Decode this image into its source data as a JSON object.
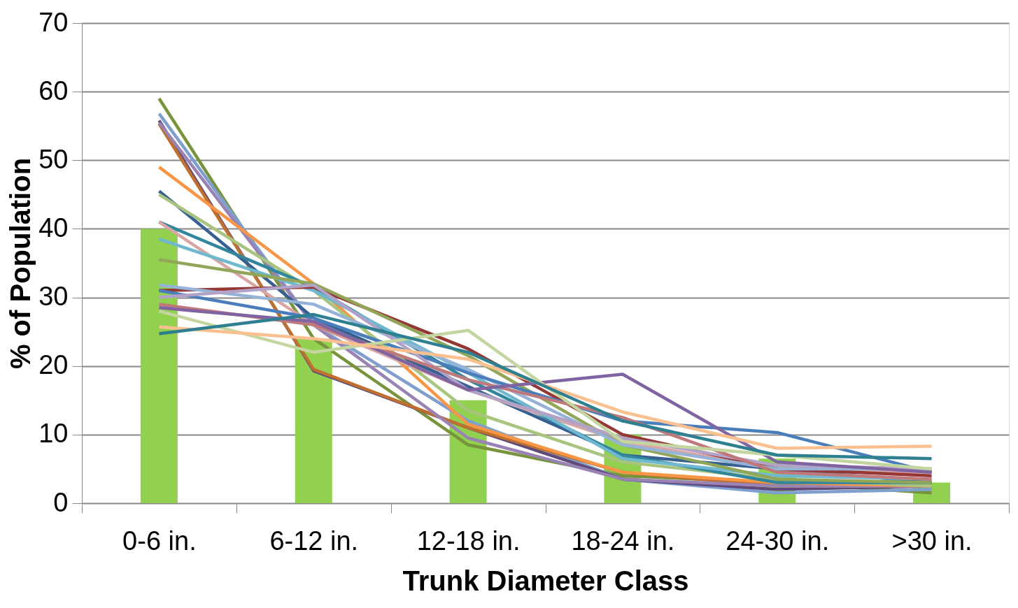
{
  "chart_data": {
    "type": "line",
    "xlabel": "Trunk Diameter Class",
    "ylabel": "% of Population",
    "categories": [
      "0-6 in.",
      "6-12 in.",
      "12-18 in.",
      "18-24 in.",
      "24-30 in.",
      ">30 in."
    ],
    "ylim": [
      0,
      70
    ],
    "yticks": [
      0,
      10,
      20,
      30,
      40,
      50,
      60,
      70
    ],
    "grid": "y",
    "legend": false,
    "marker": "none",
    "line_style": "solid",
    "series": [
      {
        "type": "bar",
        "color": "#92d050",
        "values": [
          40,
          24,
          15,
          10,
          6.5,
          3
        ]
      },
      {
        "color": "#77933c",
        "values": [
          59,
          24,
          8.5,
          4,
          3,
          1.5
        ]
      },
      {
        "color": "#7f9fcf",
        "values": [
          56.8,
          26,
          12,
          3.5,
          1.5,
          2
        ]
      },
      {
        "color": "#604a7b",
        "values": [
          55.8,
          19.3,
          11,
          3.5,
          2,
          2.5
        ]
      },
      {
        "color": "#c0702e",
        "values": [
          55.3,
          19.5,
          11,
          4.5,
          2.5,
          2.5
        ]
      },
      {
        "color": "#9983b5",
        "values": [
          55.5,
          26,
          9.5,
          3.5,
          2.5,
          2.5
        ]
      },
      {
        "color": "#f79646",
        "values": [
          49,
          32,
          11.5,
          4.5,
          3,
          2.5
        ]
      },
      {
        "color": "#376092",
        "values": [
          45.5,
          27,
          17,
          7,
          5,
          3
        ]
      },
      {
        "color": "#a8c47e",
        "values": [
          45,
          31,
          13.5,
          6,
          3.5,
          2.5
        ]
      },
      {
        "color": "#31859c",
        "values": [
          41,
          31.5,
          18,
          7,
          3,
          3
        ]
      },
      {
        "color": "#d9a5a5",
        "values": [
          41,
          26,
          16.5,
          9,
          5,
          4.5
        ]
      },
      {
        "color": "#6fb8d0",
        "values": [
          38.5,
          31,
          19,
          6.5,
          4,
          3.5
        ]
      },
      {
        "color": "#953735",
        "values": [
          31,
          31.5,
          22.5,
          10,
          5,
          4
        ]
      },
      {
        "color": "#92a65a",
        "values": [
          35.5,
          32,
          21.5,
          8.5,
          3.5,
          3
        ]
      },
      {
        "color": "#95b3d7",
        "values": [
          31.8,
          29,
          19.5,
          8.5,
          5,
          5
        ]
      },
      {
        "color": "#4a7ebb",
        "values": [
          31,
          27,
          19,
          12,
          10.3,
          4.5
        ]
      },
      {
        "color": "#b3a2c7",
        "values": [
          30,
          31.8,
          16.5,
          9.5,
          5.5,
          5
        ]
      },
      {
        "color": "#c0797a",
        "values": [
          29,
          26,
          18,
          12.5,
          4.5,
          3.5
        ]
      },
      {
        "color": "#8064a2",
        "values": [
          28.5,
          26.5,
          16.5,
          18.8,
          6,
          4.5
        ]
      },
      {
        "color": "#c4d6a0",
        "values": [
          28,
          22,
          25.2,
          9,
          7,
          5
        ]
      },
      {
        "color": "#fac090",
        "values": [
          25.7,
          24,
          21,
          13.3,
          8,
          8.3
        ]
      },
      {
        "color": "#2e7f90",
        "values": [
          24.7,
          27.5,
          22,
          12,
          7,
          6.5
        ]
      }
    ]
  }
}
